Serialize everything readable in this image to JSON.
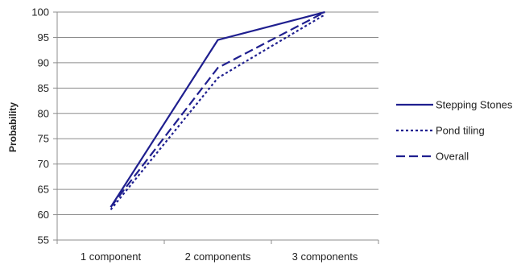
{
  "chart_data": {
    "type": "line",
    "categories": [
      "1 component",
      "2 components",
      "3 components"
    ],
    "series": [
      {
        "name": "Stepping Stones",
        "values": [
          61.5,
          94.5,
          100
        ],
        "dash": "none"
      },
      {
        "name": "Pond tiling",
        "values": [
          61.0,
          87.0,
          99.5
        ],
        "dash": "3,3"
      },
      {
        "name": "Overall",
        "values": [
          61.5,
          89.0,
          100
        ],
        "dash": "11,5"
      }
    ],
    "title": "",
    "xlabel": "",
    "ylabel": "Probability",
    "ylim": [
      55,
      100
    ],
    "yticks": [
      "55",
      "60",
      "65",
      "70",
      "75",
      "80",
      "85",
      "90",
      "95",
      "100"
    ],
    "grid": true,
    "legend_position": "right",
    "line_color": "#1f1f8f",
    "grid_color": "#8c8c8c"
  }
}
